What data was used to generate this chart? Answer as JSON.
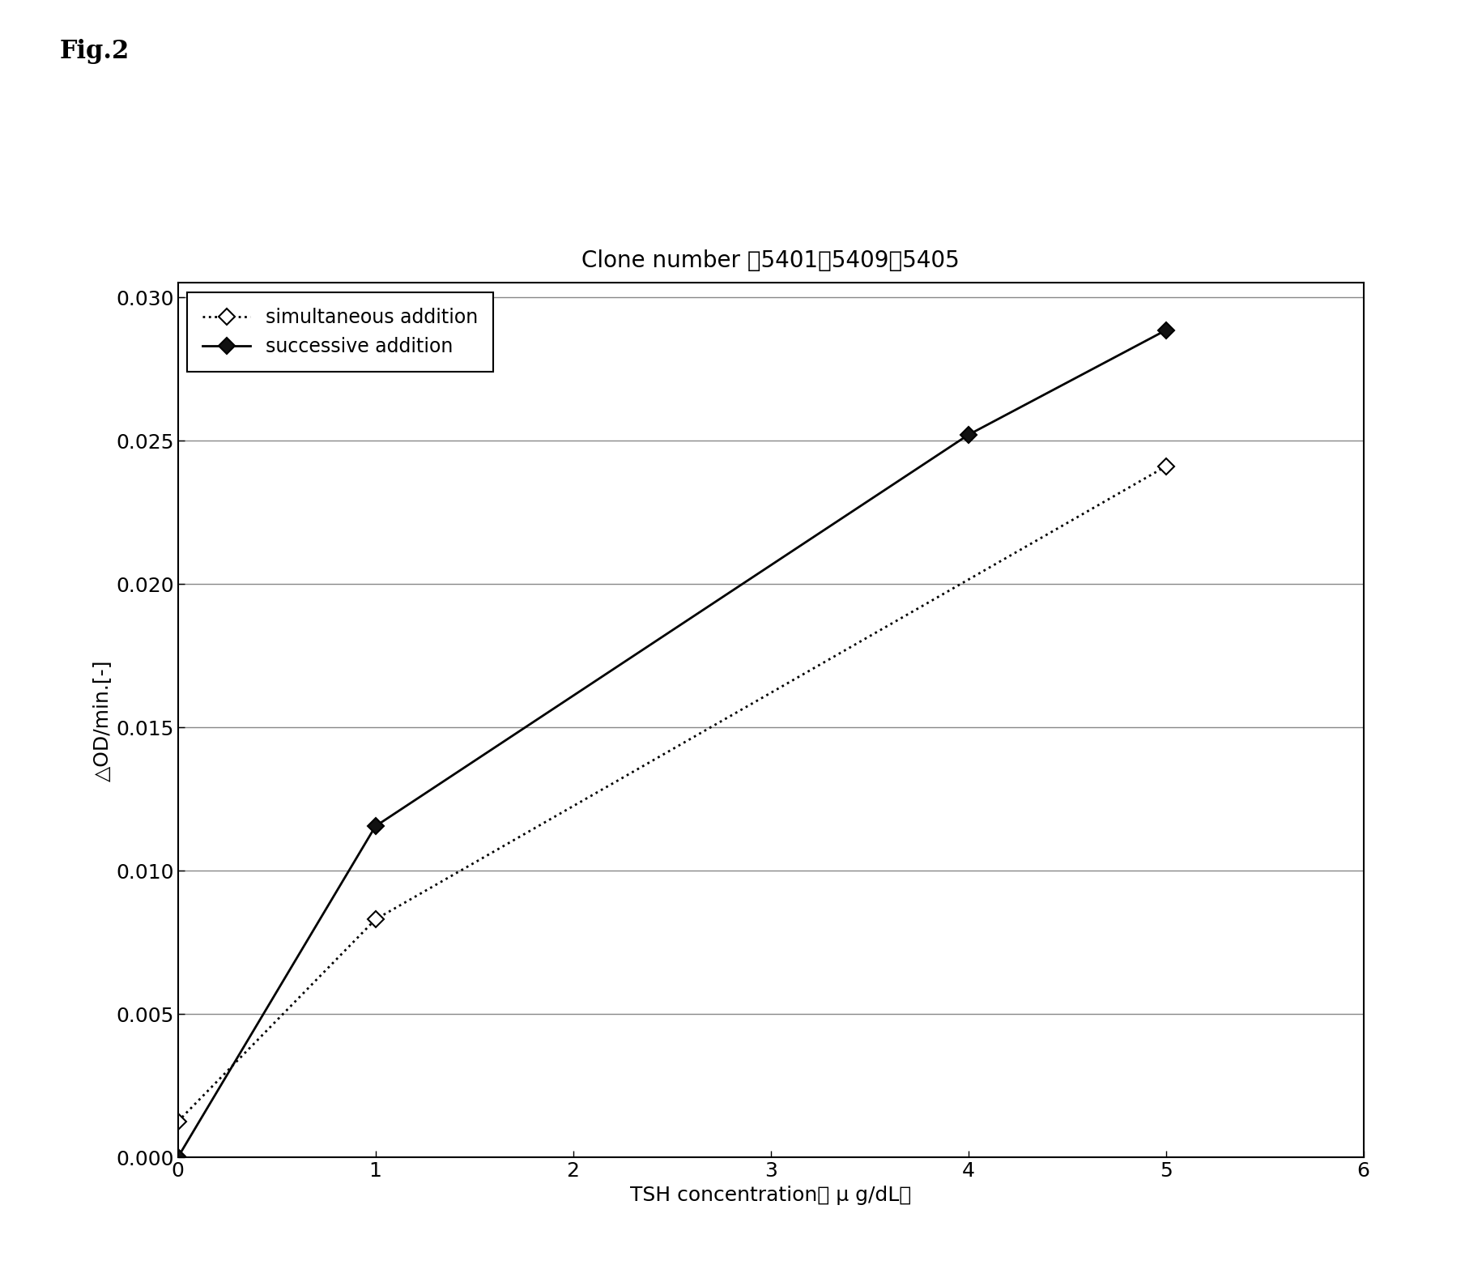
{
  "title": "Clone number ：5401、5409、5405",
  "xlabel": "TSH concentration［ μ g/dL］",
  "ylabel": "△OD/min.[-]",
  "fig_label": "Fig.2",
  "xlim": [
    0,
    6
  ],
  "ylim": [
    0,
    0.0305
  ],
  "xticks": [
    0,
    1,
    2,
    3,
    4,
    5,
    6
  ],
  "yticks": [
    0.0,
    0.005,
    0.01,
    0.015,
    0.02,
    0.025,
    0.03
  ],
  "simultaneous": {
    "x": [
      0,
      1,
      5
    ],
    "y": [
      0.00125,
      0.0083,
      0.0241
    ],
    "label": "simultaneous addition",
    "color": "#000000",
    "linestyle": "dotted",
    "marker": "D",
    "markersize": 10,
    "markerfacecolor": "white",
    "linewidth": 2.0
  },
  "successive": {
    "x": [
      0,
      1,
      4,
      5
    ],
    "y": [
      0.0,
      0.01155,
      0.0252,
      0.02885
    ],
    "label": "successive addition",
    "color": "#000000",
    "linestyle": "solid",
    "marker": "D",
    "markersize": 10,
    "markerfacecolor": "#111111",
    "linewidth": 2.0
  },
  "background_color": "#ffffff",
  "grid_color": "#888888",
  "title_fontsize": 20,
  "label_fontsize": 18,
  "tick_fontsize": 18,
  "legend_fontsize": 17,
  "fig_label_fontsize": 22,
  "fig_label_fontweight": "bold"
}
